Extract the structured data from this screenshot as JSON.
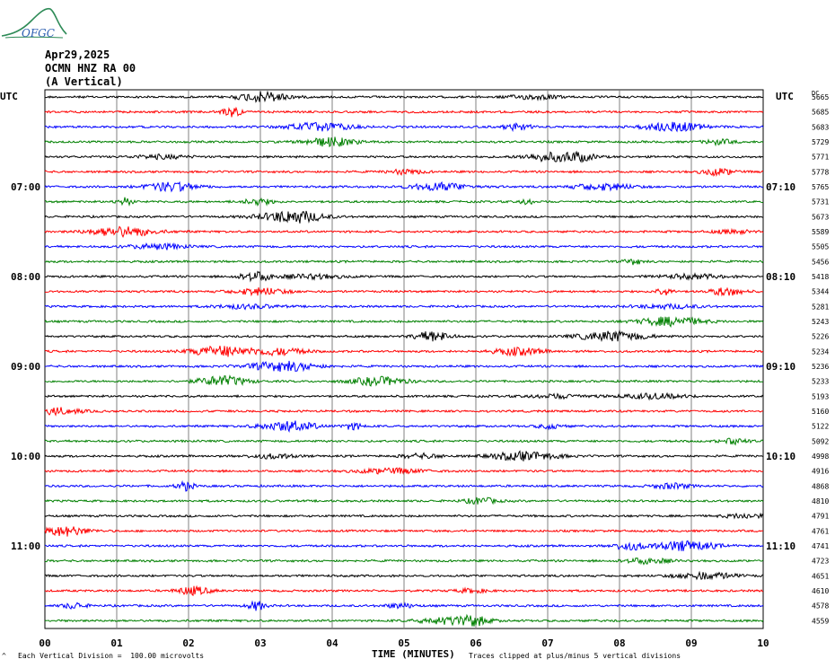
{
  "logo_text": "OFGC",
  "header": {
    "date": "Apr29,2025",
    "station": "OCMN HNZ RA 00",
    "component": "(A Vertical)"
  },
  "left_axis_label": "UTC",
  "right_axis_label": "UTC",
  "dc_label": "DC",
  "footer": {
    "scale_note": "Each Vertical Division =  100.00 microvolts",
    "clip_note": "Traces clipped at plus/minus 5 vertical divisions"
  },
  "chart_data": {
    "type": "line",
    "title": "",
    "xlabel": "TIME (MINUTES)",
    "ylabel": "",
    "xlim": [
      0,
      10
    ],
    "x_ticks": [
      "00",
      "01",
      "02",
      "03",
      "04",
      "05",
      "06",
      "07",
      "08",
      "09",
      "10"
    ],
    "grid": true,
    "trace_colors": [
      "#000000",
      "#ff0000",
      "#0000ff",
      "#008000"
    ],
    "left_time_labels": [
      {
        "row": 6,
        "label": "07:00"
      },
      {
        "row": 12,
        "label": "08:00"
      },
      {
        "row": 18,
        "label": "09:00"
      },
      {
        "row": 24,
        "label": "10:00"
      },
      {
        "row": 30,
        "label": "11:00"
      }
    ],
    "right_time_labels": [
      {
        "row": 6,
        "label": "07:10"
      },
      {
        "row": 12,
        "label": "08:10"
      },
      {
        "row": 18,
        "label": "09:10"
      },
      {
        "row": 24,
        "label": "10:10"
      },
      {
        "row": 30,
        "label": "11:10"
      }
    ],
    "dc_values": [
      5665,
      5685,
      5683,
      5729,
      5771,
      5778,
      5765,
      5731,
      5673,
      5589,
      5505,
      5456,
      5418,
      5344,
      5281,
      5243,
      5226,
      5234,
      5236,
      5233,
      5193,
      5160,
      5122,
      5092,
      4998,
      4916,
      4868,
      4810,
      4791,
      4761,
      4741,
      4723,
      4651,
      4610,
      4578,
      4559
    ]
  }
}
